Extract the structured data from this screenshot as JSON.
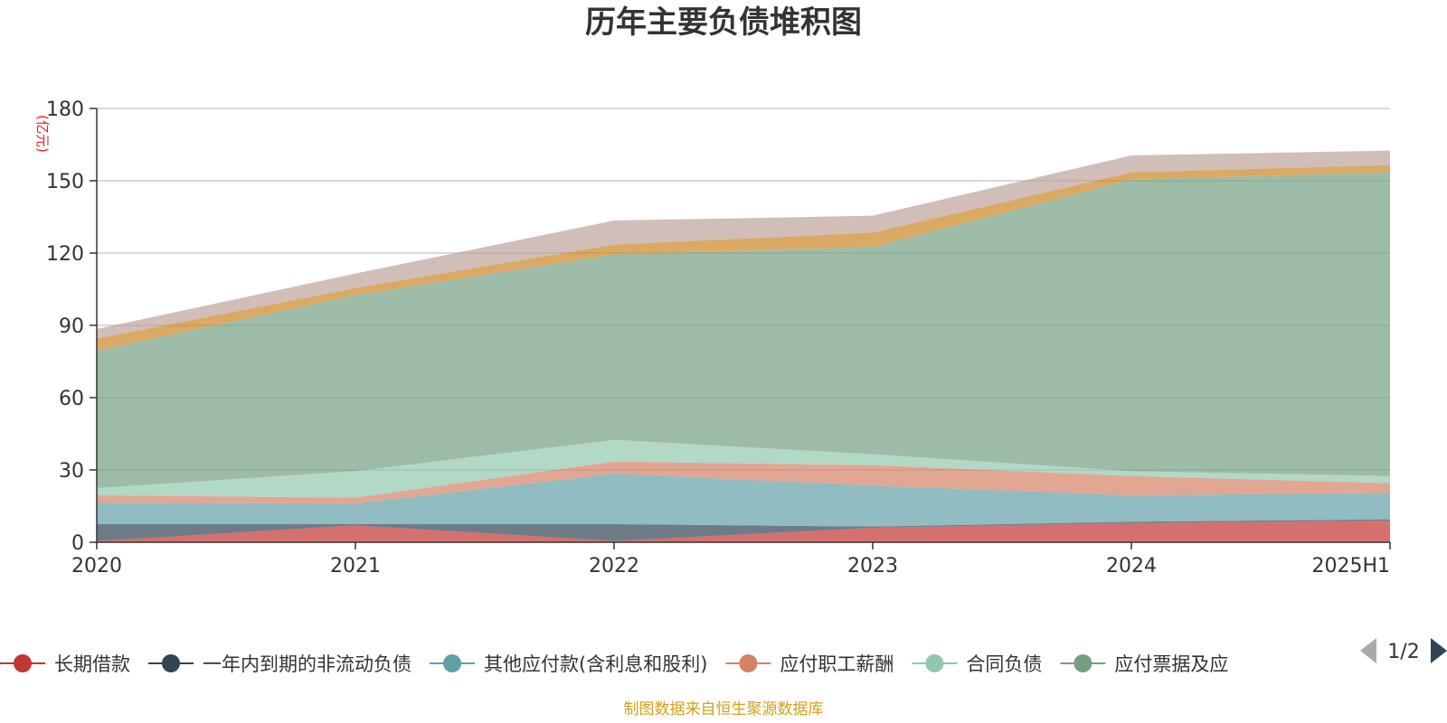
{
  "chart_data": {
    "type": "area",
    "stacked": true,
    "title": "历年主要负债堆积图",
    "unit_label": "(亿元)",
    "x": [
      "2020",
      "2021",
      "2022",
      "2023",
      "2024",
      "2025H1"
    ],
    "y_ticks": [
      "0",
      "30",
      "60",
      "90",
      "120",
      "150",
      "180"
    ],
    "ylim": [
      0,
      180
    ],
    "grid": true,
    "legend_position": "bottom",
    "series": [
      {
        "name": "长期借款",
        "color": "#c23531",
        "values": [
          0.5,
          7,
          0.5,
          6,
          8,
          9
        ]
      },
      {
        "name": "一年内到期的非流动负债",
        "color": "#2f4554",
        "values": [
          7,
          0.5,
          7,
          0.5,
          0.5,
          0.5
        ]
      },
      {
        "name": "其他应付款(含利息和股利)",
        "color": "#61a0a8",
        "values": [
          9,
          8.5,
          21,
          17,
          11,
          11
        ]
      },
      {
        "name": "应付职工薪酬",
        "color": "#d48265",
        "values": [
          3,
          2.5,
          5,
          8.5,
          8,
          4
        ]
      },
      {
        "name": "合同负债",
        "color": "#91c7ae",
        "values": [
          3,
          11,
          9,
          4.5,
          2,
          3
        ]
      },
      {
        "name": "应付票据及应付账款",
        "color": "#749f83",
        "values": [
          57,
          73,
          77,
          86,
          121,
          126
        ]
      },
      {
        "name": "",
        "color": "#ca8622",
        "values": [
          5,
          3,
          4,
          6,
          3,
          3
        ]
      },
      {
        "name": "",
        "color": "#bda29a",
        "values": [
          4,
          6,
          10,
          7,
          7,
          6
        ]
      }
    ]
  },
  "legend": {
    "items": [
      {
        "label": "长期借款",
        "color": "#c23531"
      },
      {
        "label": "一年内到期的非流动负债",
        "color": "#2f4554"
      },
      {
        "label": "其他应付款(含利息和股利)",
        "color": "#61a0a8"
      },
      {
        "label": "应付职工薪酬",
        "color": "#d48265"
      },
      {
        "label": "合同负债",
        "color": "#91c7ae"
      },
      {
        "label": "应付票据及应",
        "color": "#749f83"
      }
    ],
    "page_indicator": "1/2",
    "prev_icon": "triangle-left-icon",
    "next_icon": "triangle-right-icon"
  },
  "source_note": "制图数据来自恒生聚源数据库"
}
